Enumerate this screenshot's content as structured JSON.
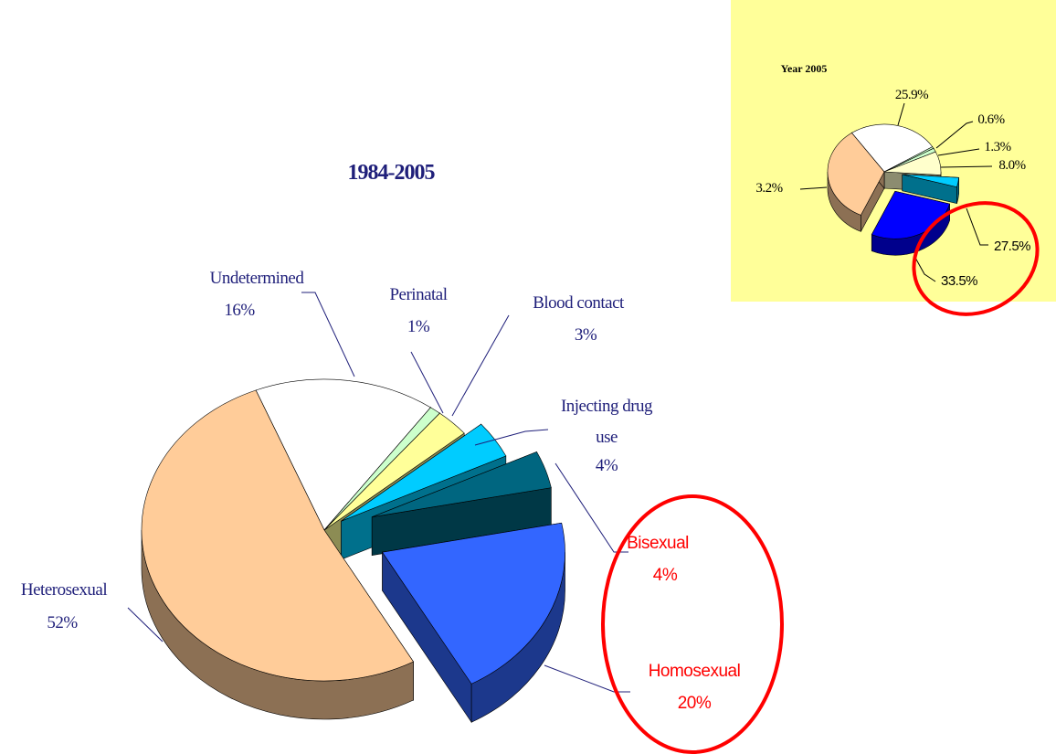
{
  "chart_data": [
    {
      "type": "pie",
      "title": "1984-2005",
      "categories": [
        "Undetermined",
        "Perinatal",
        "Blood contact",
        "Injecting drug use",
        "Bisexual",
        "Homosexual",
        "Heterosexual"
      ],
      "values": [
        16,
        1,
        3,
        4,
        4,
        20,
        52
      ],
      "value_labels": [
        "16%",
        "1%",
        "3%",
        "4%",
        "4%",
        "20%",
        "52%"
      ],
      "colors": [
        "#ffffff",
        "#ccffcc",
        "#ffff99",
        "#00ccff",
        "#006680",
        "#3366ff",
        "#ffcc99"
      ]
    },
    {
      "type": "pie",
      "title": "Year 2005",
      "values": [
        25.9,
        0.6,
        1.3,
        8.0,
        3.2,
        27.5,
        33.5
      ],
      "value_labels": [
        "25.9%",
        "0.6%",
        "1.3%",
        "8.0%",
        "3.2%",
        "27.5%",
        "33.5%"
      ],
      "colors": [
        "#ffffff",
        "#ccffcc",
        "#ccffcc",
        "#ffffcc",
        "#00ccff",
        "#0000ff",
        "#ffcc99"
      ]
    }
  ]
}
